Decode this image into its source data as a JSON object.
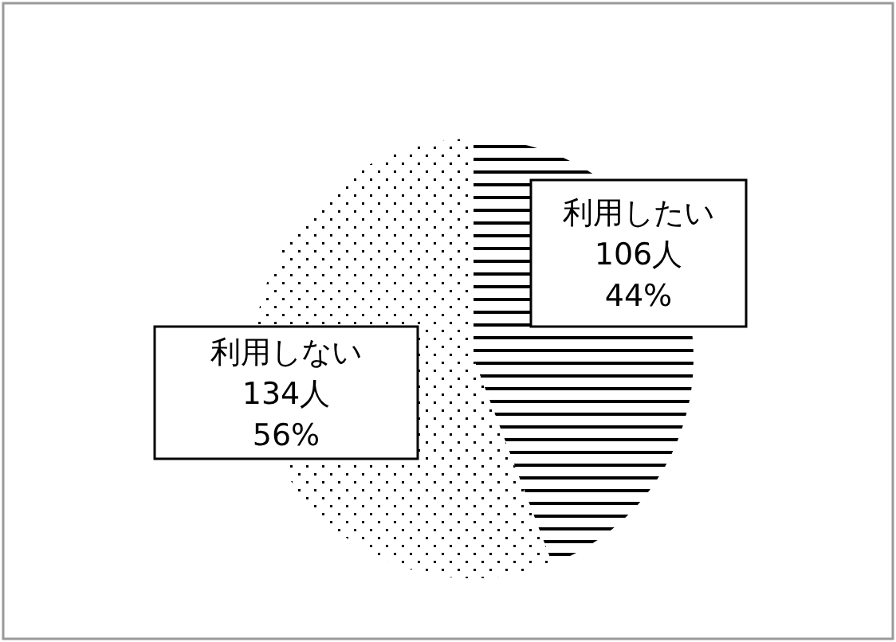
{
  "chart_data": {
    "type": "pie",
    "categories": [
      "利用したい",
      "利用しない"
    ],
    "values": [
      106,
      134
    ],
    "value_labels": [
      "106人\n44%",
      "134人\n56%"
    ],
    "colors": [
      "#000000",
      "#000000"
    ]
  }
}
